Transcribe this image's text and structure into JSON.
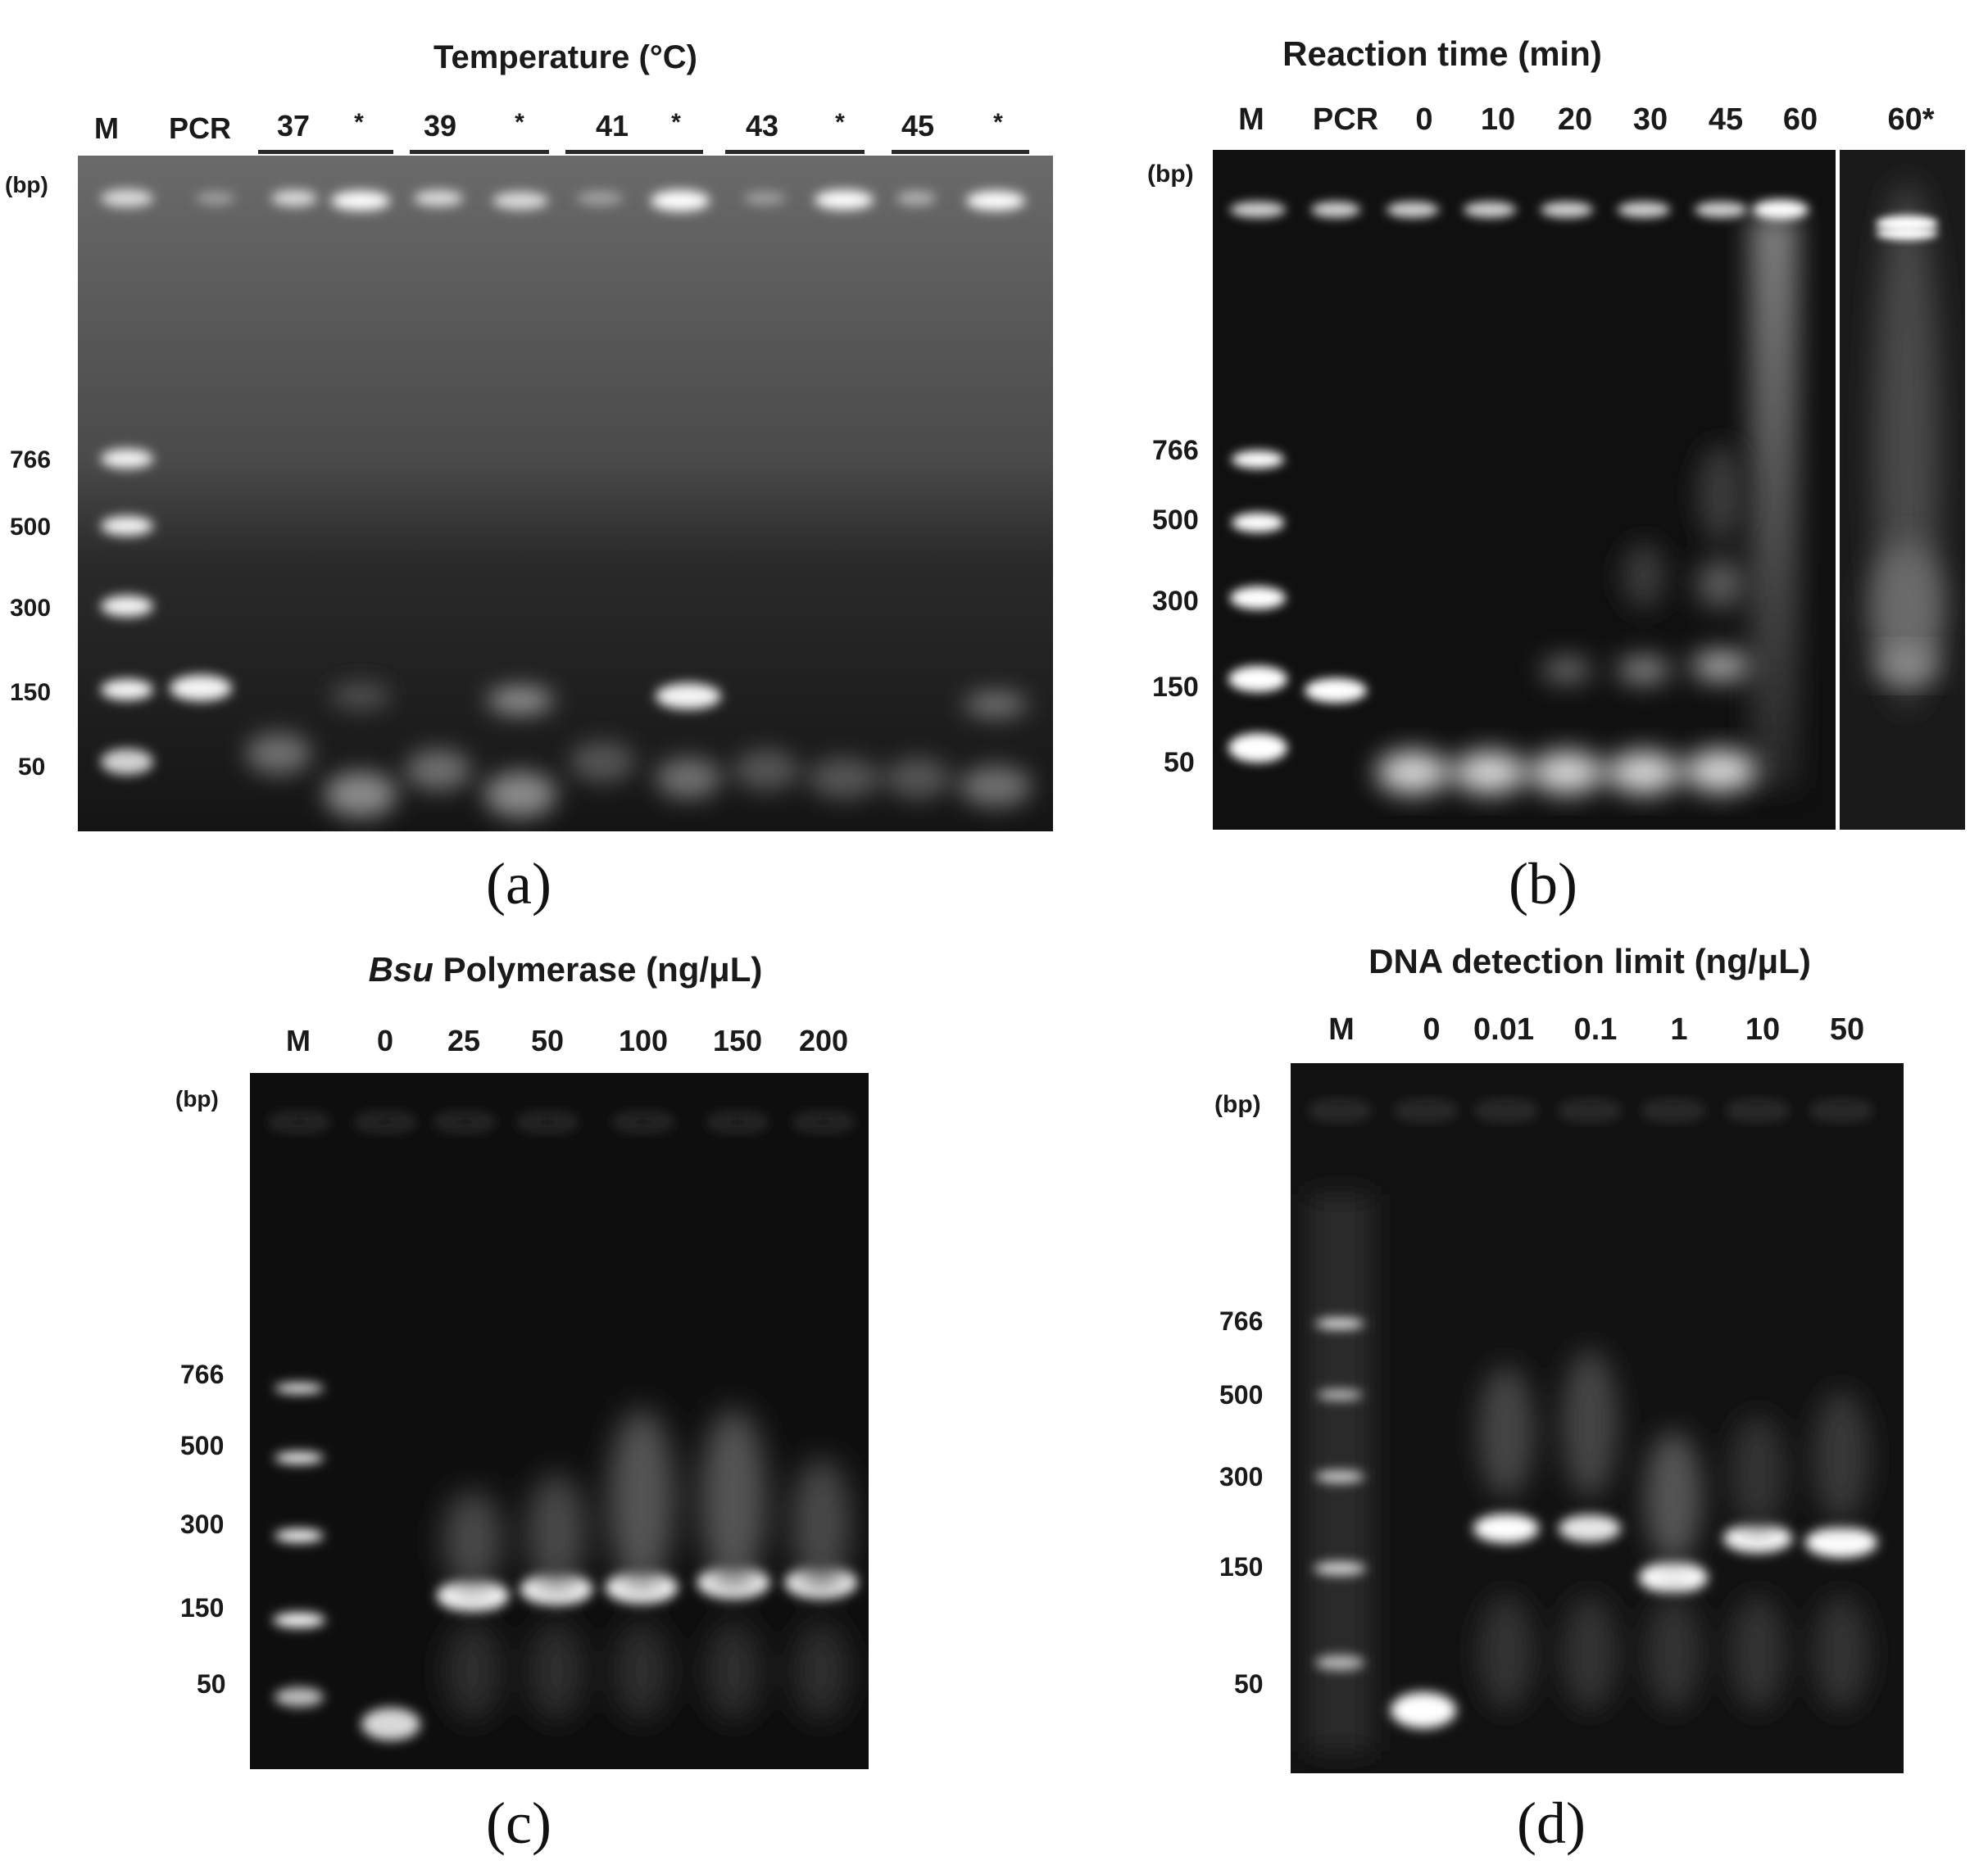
{
  "panels": {
    "a": {
      "title": "Temperature (°C)",
      "caption": "(a)",
      "bp_unit": "(bp)",
      "lanes": [
        "M",
        "PCR",
        "37",
        "*",
        "39",
        "*",
        "41",
        "*",
        "43",
        "*",
        "45",
        "*"
      ],
      "markers": [
        "766",
        "500",
        "300",
        "150",
        "50"
      ]
    },
    "b": {
      "title": "Reaction time (min)",
      "caption": "(b)",
      "bp_unit": "(bp)",
      "lanes": [
        "M",
        "PCR",
        "0",
        "10",
        "20",
        "30",
        "45",
        "60",
        "60*"
      ],
      "markers": [
        "766",
        "500",
        "300",
        "150",
        "50"
      ]
    },
    "c": {
      "title_italic": "Bsu",
      "title_rest": " Polymerase (ng/μL)",
      "caption": "(c)",
      "bp_unit": "(bp)",
      "lanes": [
        "M",
        "0",
        "25",
        "50",
        "100",
        "150",
        "200"
      ],
      "markers": [
        "766",
        "500",
        "300",
        "150",
        "50"
      ]
    },
    "d": {
      "title": "DNA detection limit (ng/μL)",
      "caption": "(d)",
      "bp_unit": "(bp)",
      "lanes": [
        "M",
        "0",
        "0.01",
        "0.1",
        "1",
        "10",
        "50"
      ],
      "markers": [
        "766",
        "500",
        "300",
        "150",
        "50"
      ]
    }
  },
  "colors": {
    "gel_dark": "#0c0c0c",
    "gel_haze": "#3a3a3a",
    "band": "#ffffff",
    "text": "#1a1a1a"
  }
}
